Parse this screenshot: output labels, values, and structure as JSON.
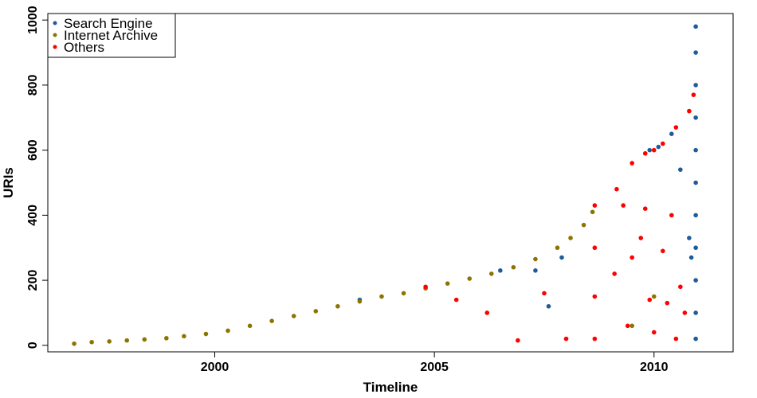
{
  "chart_data": {
    "type": "scatter",
    "title": "",
    "xlabel": "Timeline",
    "ylabel": "URIs",
    "xlim": [
      1996.2,
      2011.8
    ],
    "ylim": [
      -20,
      1020
    ],
    "x_ticks": [
      2000,
      2005,
      2010
    ],
    "y_ticks": [
      0,
      200,
      400,
      600,
      800,
      1000
    ],
    "x_tick_labels": [
      "2000",
      "2005",
      "2010"
    ],
    "y_tick_labels": [
      "0",
      "200",
      "400",
      "600",
      "800",
      "1000"
    ],
    "grid": false,
    "legend_position": "top-left",
    "series": [
      {
        "name": "Search Engine",
        "color": "#1f5c99",
        "points": [
          [
            2003.3,
            140
          ],
          [
            2006.5,
            230
          ],
          [
            2007.3,
            230
          ],
          [
            2007.6,
            120
          ],
          [
            2007.9,
            270
          ],
          [
            2009.9,
            600
          ],
          [
            2010.1,
            610
          ],
          [
            2010.4,
            650
          ],
          [
            2010.6,
            540
          ],
          [
            2010.8,
            330
          ],
          [
            2010.85,
            270
          ],
          [
            2010.95,
            980
          ],
          [
            2010.95,
            900
          ],
          [
            2010.95,
            800
          ],
          [
            2010.95,
            700
          ],
          [
            2010.95,
            600
          ],
          [
            2010.95,
            500
          ],
          [
            2010.95,
            400
          ],
          [
            2010.95,
            300
          ],
          [
            2010.95,
            200
          ],
          [
            2010.95,
            100
          ],
          [
            2010.95,
            20
          ]
        ]
      },
      {
        "name": "Internet Archive",
        "color": "#8b7500",
        "points": [
          [
            1996.8,
            5
          ],
          [
            1997.2,
            10
          ],
          [
            1997.6,
            12
          ],
          [
            1998.0,
            15
          ],
          [
            1998.4,
            18
          ],
          [
            1998.9,
            22
          ],
          [
            1999.3,
            28
          ],
          [
            1999.8,
            35
          ],
          [
            2000.3,
            45
          ],
          [
            2000.8,
            60
          ],
          [
            2001.3,
            75
          ],
          [
            2001.8,
            90
          ],
          [
            2002.3,
            105
          ],
          [
            2002.8,
            120
          ],
          [
            2003.3,
            135
          ],
          [
            2003.8,
            150
          ],
          [
            2004.3,
            160
          ],
          [
            2004.8,
            175
          ],
          [
            2005.3,
            190
          ],
          [
            2005.8,
            205
          ],
          [
            2006.3,
            220
          ],
          [
            2006.8,
            240
          ],
          [
            2007.3,
            265
          ],
          [
            2007.8,
            300
          ],
          [
            2008.1,
            330
          ],
          [
            2008.4,
            370
          ],
          [
            2008.6,
            410
          ],
          [
            2009.5,
            60
          ],
          [
            2010.0,
            150
          ]
        ]
      },
      {
        "name": "Others",
        "color": "#ff0000",
        "points": [
          [
            2004.8,
            180
          ],
          [
            2005.5,
            140
          ],
          [
            2006.2,
            100
          ],
          [
            2006.9,
            15
          ],
          [
            2007.5,
            160
          ],
          [
            2008.0,
            20
          ],
          [
            2008.65,
            430
          ],
          [
            2008.65,
            300
          ],
          [
            2008.65,
            150
          ],
          [
            2008.65,
            20
          ],
          [
            2009.1,
            220
          ],
          [
            2009.15,
            480
          ],
          [
            2009.5,
            560
          ],
          [
            2009.8,
            590
          ],
          [
            2010.0,
            600
          ],
          [
            2010.2,
            620
          ],
          [
            2010.5,
            670
          ],
          [
            2010.8,
            720
          ],
          [
            2010.9,
            770
          ],
          [
            2009.3,
            430
          ],
          [
            2009.8,
            420
          ],
          [
            2010.4,
            400
          ],
          [
            2009.7,
            330
          ],
          [
            2010.2,
            290
          ],
          [
            2009.5,
            270
          ],
          [
            2010.6,
            180
          ],
          [
            2009.9,
            140
          ],
          [
            2010.3,
            130
          ],
          [
            2010.7,
            100
          ],
          [
            2009.4,
            60
          ],
          [
            2010.0,
            40
          ],
          [
            2010.5,
            20
          ]
        ]
      }
    ]
  }
}
